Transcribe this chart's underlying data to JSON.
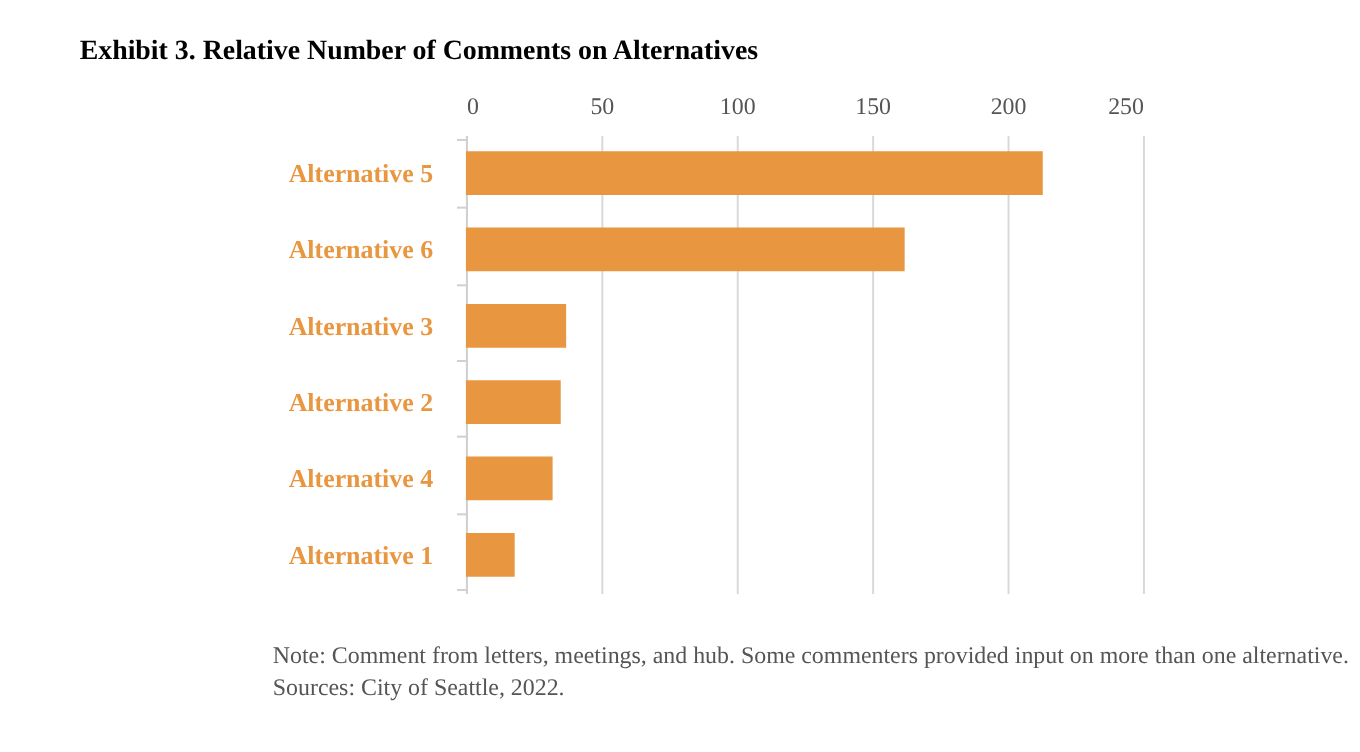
{
  "chart_data": {
    "type": "bar",
    "orientation": "horizontal",
    "title": "Exhibit 3. Relative Number of Comments on Alternatives",
    "categories": [
      "Alternative 5",
      "Alternative 6",
      "Alternative 3",
      "Alternative 2",
      "Alternative 4",
      "Alternative 1"
    ],
    "values": [
      213,
      162,
      37,
      35,
      32,
      18
    ],
    "color": "#e8963f",
    "xlim": [
      0,
      250
    ],
    "xticks": [
      0,
      50,
      100,
      150,
      200,
      250
    ],
    "grid": "x",
    "annotations": [
      "Note: Comment from letters, meetings, and hub. Some commenters provided input on more than one alternative.",
      "Sources: City of Seattle, 2022."
    ]
  }
}
